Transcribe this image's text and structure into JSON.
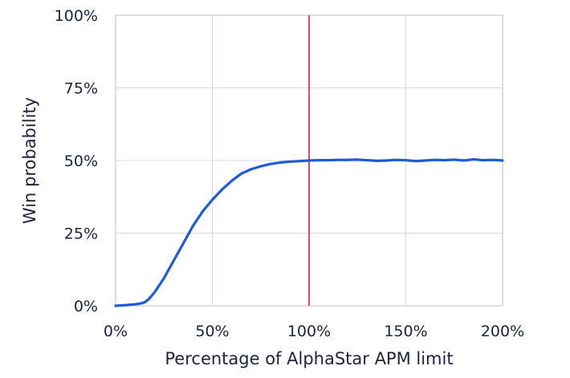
{
  "chart_data": {
    "type": "line",
    "title": "",
    "xlabel": "Percentage of AlphaStar APM limit",
    "ylabel": "Win probability",
    "xlim": [
      0,
      200
    ],
    "ylim": [
      0,
      100
    ],
    "grid": true,
    "x_ticks": [
      0,
      50,
      100,
      150,
      200
    ],
    "x_tick_labels": [
      "0%",
      "50%",
      "100%",
      "150%",
      "200%"
    ],
    "y_ticks": [
      0,
      25,
      50,
      75,
      100
    ],
    "y_tick_labels": [
      "0%",
      "25%",
      "50%",
      "75%",
      "100%"
    ],
    "series": [
      {
        "color": "#1f5bd6",
        "x": [
          0,
          5,
          10,
          13,
          15,
          17,
          20,
          25,
          30,
          35,
          40,
          45,
          50,
          55,
          60,
          65,
          70,
          75,
          80,
          85,
          90,
          95,
          100,
          105,
          110,
          115,
          120,
          125,
          130,
          135,
          140,
          145,
          150,
          155,
          160,
          165,
          170,
          175,
          180,
          185,
          190,
          195,
          200
        ],
        "y": [
          0,
          0.2,
          0.5,
          0.8,
          1.2,
          2.2,
          4.5,
          9.5,
          15.5,
          21.5,
          27.5,
          32.5,
          36.5,
          40.0,
          43.0,
          45.5,
          47.0,
          48.0,
          48.8,
          49.3,
          49.6,
          49.8,
          50.0,
          50.1,
          50.1,
          50.2,
          50.2,
          50.3,
          50.1,
          49.9,
          50.0,
          50.2,
          50.1,
          49.8,
          50.0,
          50.2,
          50.1,
          50.3,
          50.0,
          50.4,
          50.1,
          50.2,
          50.0
        ]
      }
    ],
    "reference_lines": [
      {
        "axis": "x",
        "value": 100,
        "color": "#e8495f"
      }
    ]
  }
}
